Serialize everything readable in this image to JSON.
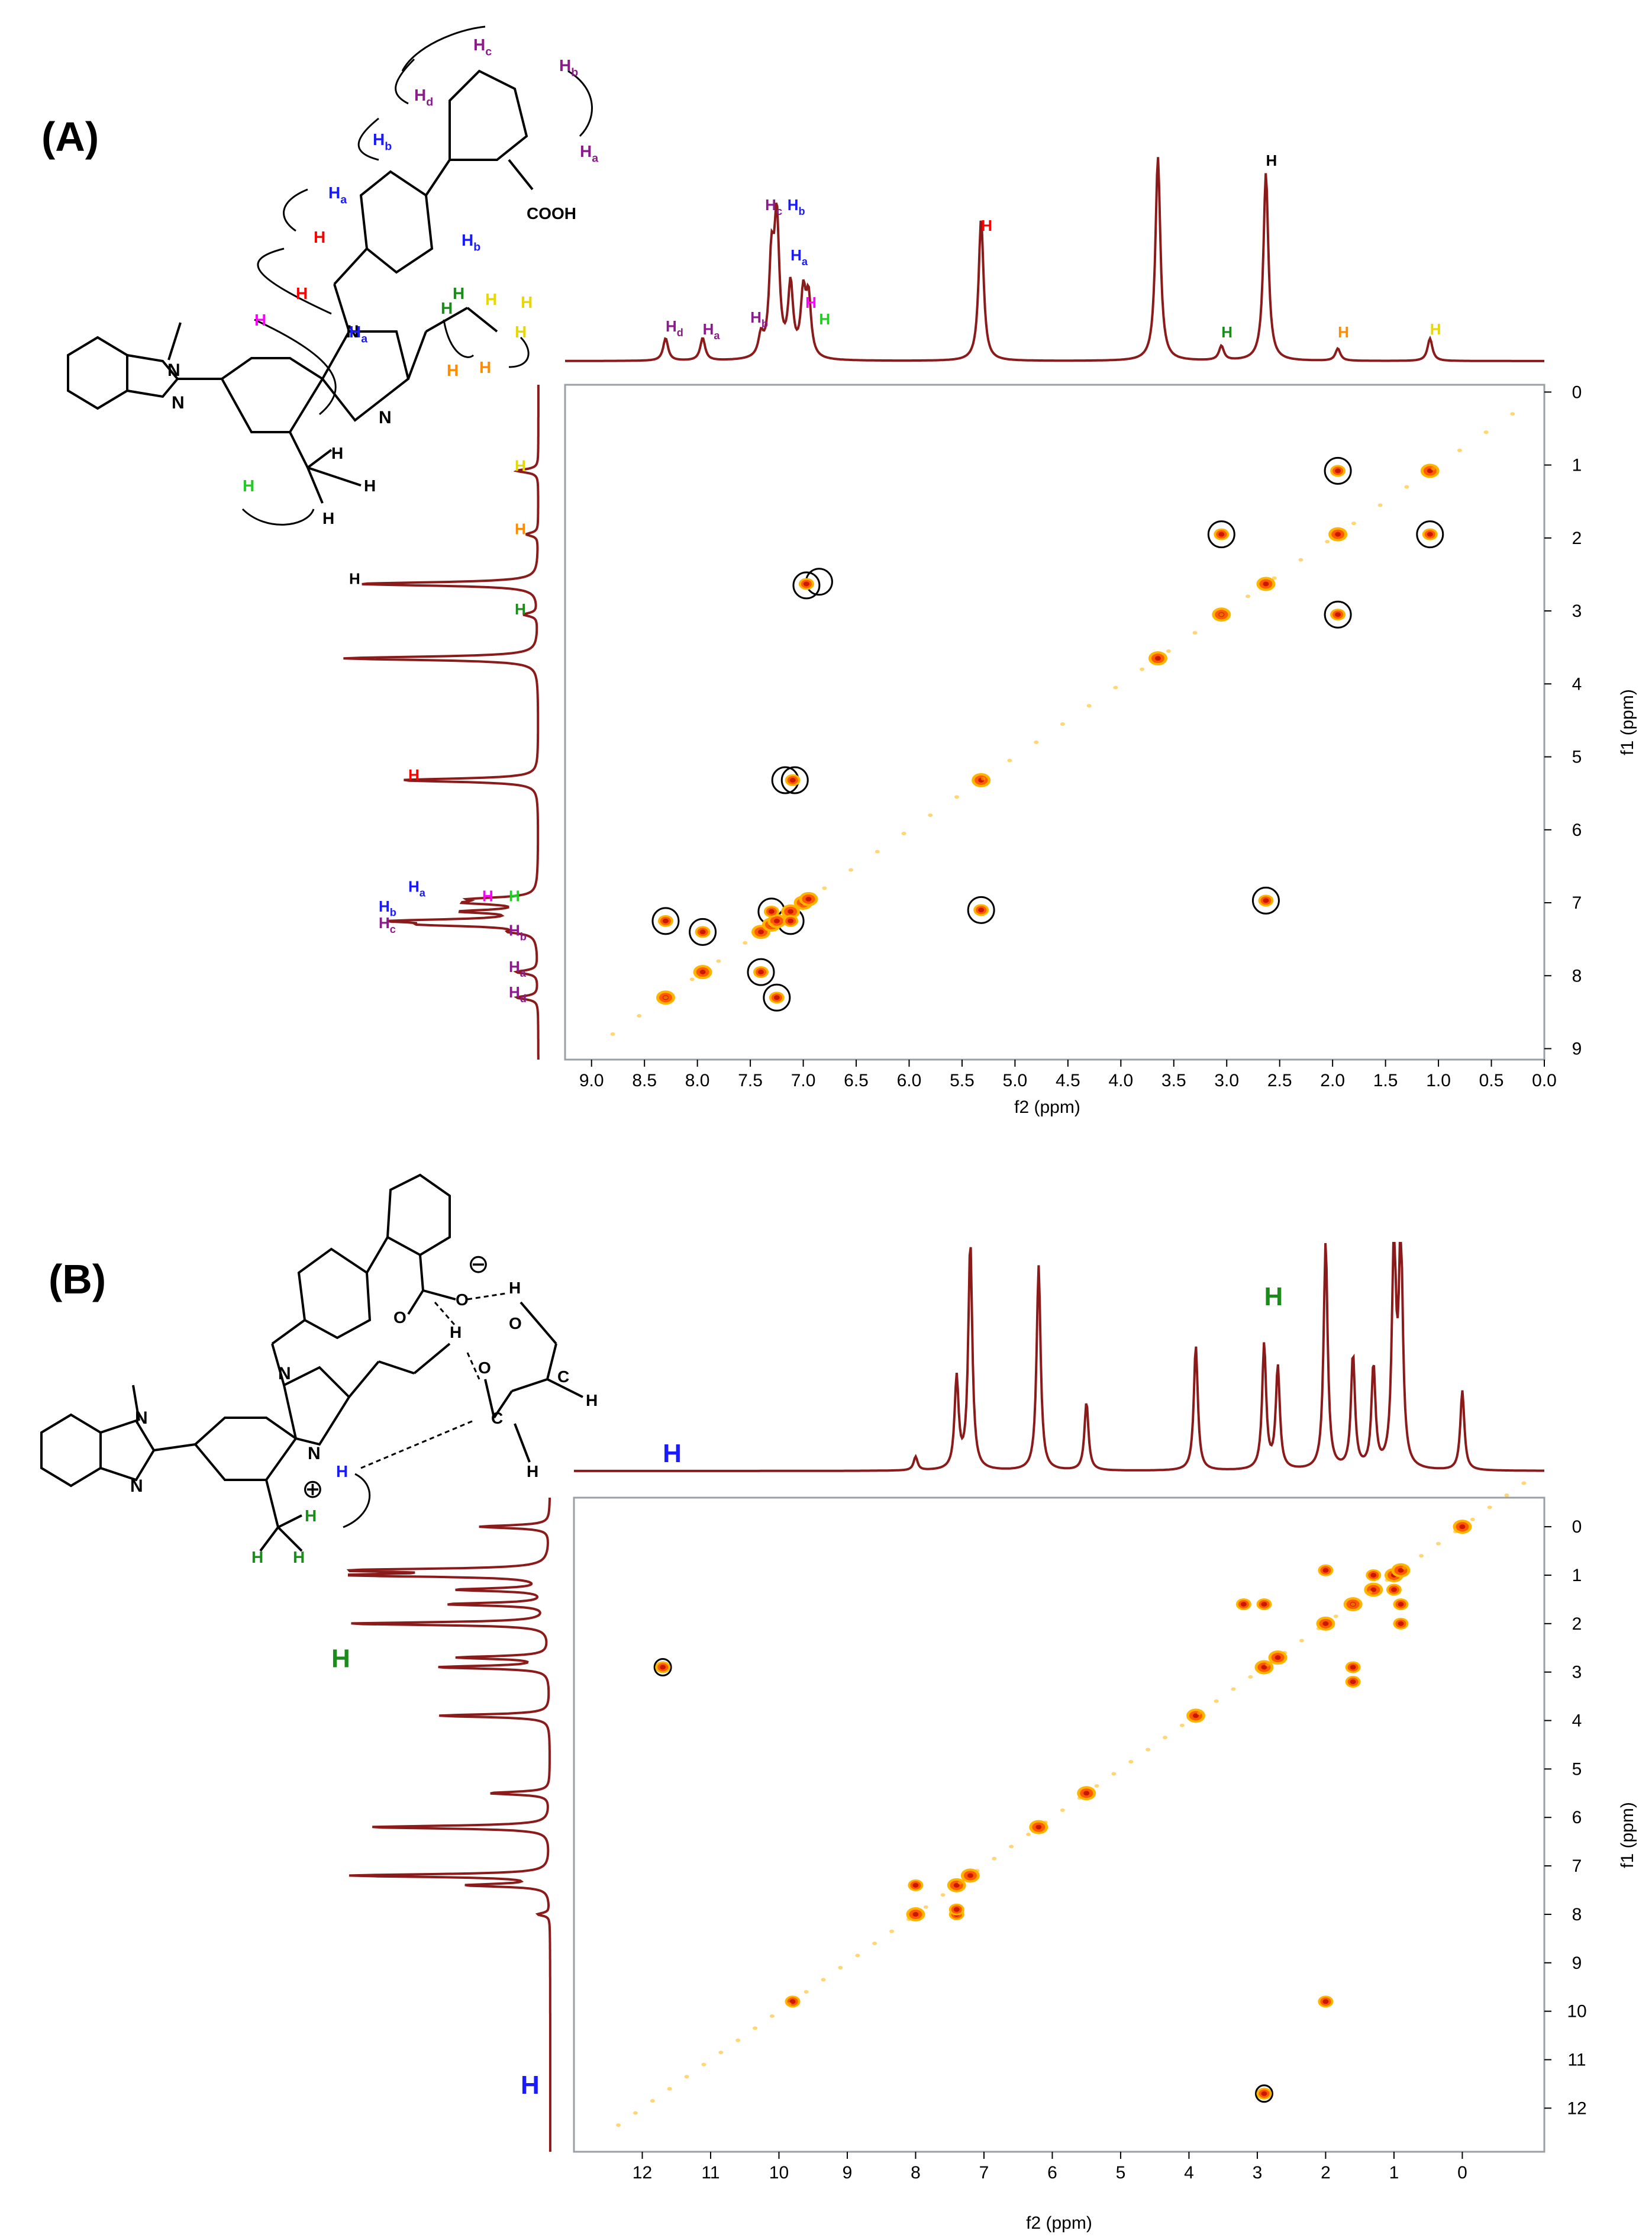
{
  "colors": {
    "spectrum": "#8b1a1a",
    "peak_strong": "#c81800",
    "peak_mid": "#ff5a00",
    "peak_weak": "#ffb400",
    "black": "#000000",
    "blue": "#1a1aff",
    "purple": "#8b1a8b",
    "red": "#ff0000",
    "magenta": "#ff00ff",
    "green": "#22cc22",
    "dark_green": "#1a8c1a",
    "orange": "#ff8c00",
    "yellow": "#e6d800"
  },
  "chart_data": [
    {
      "type": "heatmap",
      "panel_label": "(A)",
      "xlabel": "f2 (ppm)",
      "ylabel": "f1 (ppm)",
      "xlim": [
        9.25,
        0.0
      ],
      "ylim": [
        -0.1,
        9.15
      ],
      "x_ticks": [
        "9.0",
        "8.5",
        "8.0",
        "7.5",
        "7.0",
        "6.5",
        "6.0",
        "5.5",
        "5.0",
        "4.5",
        "4.0",
        "3.5",
        "3.0",
        "2.5",
        "2.0",
        "1.5",
        "1.0",
        "0.5",
        "0.0"
      ],
      "y_ticks": [
        "0",
        "1",
        "2",
        "3",
        "4",
        "5",
        "6",
        "7",
        "8",
        "9"
      ],
      "diagonal_peaks": [
        [
          8.3,
          8.3
        ],
        [
          7.95,
          7.95
        ],
        [
          7.4,
          7.4
        ],
        [
          7.3,
          7.3
        ],
        [
          7.25,
          7.25
        ],
        [
          7.12,
          7.12
        ],
        [
          7.0,
          7.0
        ],
        [
          6.95,
          6.95
        ],
        [
          5.32,
          5.32
        ],
        [
          3.65,
          3.65
        ],
        [
          3.05,
          3.05
        ],
        [
          2.63,
          2.63
        ],
        [
          1.95,
          1.95
        ],
        [
          1.08,
          1.08
        ]
      ],
      "cross_peaks": [
        [
          8.3,
          7.25
        ],
        [
          7.95,
          7.4
        ],
        [
          7.4,
          7.95
        ],
        [
          7.25,
          8.3
        ],
        [
          7.3,
          7.12
        ],
        [
          7.12,
          7.25
        ],
        [
          6.97,
          2.63
        ],
        [
          2.63,
          6.97
        ],
        [
          7.1,
          5.32
        ],
        [
          5.32,
          7.1
        ],
        [
          3.05,
          1.95
        ],
        [
          1.95,
          3.05
        ],
        [
          1.95,
          1.08
        ],
        [
          1.08,
          1.95
        ]
      ],
      "circled": [
        [
          8.3,
          7.25
        ],
        [
          7.95,
          7.4
        ],
        [
          7.4,
          7.95
        ],
        [
          7.25,
          8.3
        ],
        [
          7.3,
          7.12
        ],
        [
          7.12,
          7.25
        ],
        [
          6.97,
          2.65
        ],
        [
          6.85,
          2.6
        ],
        [
          7.17,
          5.32
        ],
        [
          7.08,
          5.32
        ],
        [
          5.32,
          7.1
        ],
        [
          2.63,
          6.97
        ],
        [
          3.05,
          1.95
        ],
        [
          1.95,
          1.08
        ],
        [
          1.08,
          1.95
        ],
        [
          1.95,
          3.05
        ]
      ],
      "f2_spectrum_labels": [
        {
          "text": "Hd",
          "color": "purple"
        },
        {
          "text": "Ha",
          "color": "purple"
        },
        {
          "text": "Hb",
          "color": "purple"
        },
        {
          "text": "Hc",
          "color": "purple"
        },
        {
          "text": "Hb",
          "color": "blue"
        },
        {
          "text": "Ha",
          "color": "blue"
        },
        {
          "text": "H",
          "color": "magenta"
        },
        {
          "text": "H",
          "color": "green"
        },
        {
          "text": "H",
          "color": "red"
        },
        {
          "text": "H",
          "color": "dark_green"
        },
        {
          "text": "H",
          "color": "black"
        },
        {
          "text": "H",
          "color": "orange"
        },
        {
          "text": "H",
          "color": "yellow"
        }
      ],
      "f1_spectrum_labels": [
        {
          "text": "H",
          "color": "yellow"
        },
        {
          "text": "H",
          "color": "orange"
        },
        {
          "text": "H",
          "color": "black"
        },
        {
          "text": "H",
          "color": "dark_green"
        },
        {
          "text": "H",
          "color": "red"
        },
        {
          "text": "Ha",
          "color": "blue"
        },
        {
          "text": "H",
          "color": "magenta"
        },
        {
          "text": "H",
          "color": "green"
        },
        {
          "text": "Hb",
          "color": "blue"
        },
        {
          "text": "Hc",
          "color": "purple"
        },
        {
          "text": "Hb",
          "color": "purple"
        },
        {
          "text": "Ha",
          "color": "purple"
        },
        {
          "text": "Hd",
          "color": "purple"
        }
      ]
    },
    {
      "type": "heatmap",
      "panel_label": "(B)",
      "xlabel": "f2 (ppm)",
      "ylabel": "f1 (ppm)",
      "xlim": [
        13.0,
        -1.2
      ],
      "ylim": [
        -0.6,
        12.9
      ],
      "x_ticks": [
        "12",
        "11",
        "10",
        "9",
        "8",
        "7",
        "6",
        "5",
        "4",
        "3",
        "2",
        "1",
        "0"
      ],
      "y_ticks": [
        "0",
        "1",
        "2",
        "3",
        "4",
        "5",
        "6",
        "7",
        "8",
        "9",
        "10",
        "11",
        "12"
      ],
      "diagonal_peaks": [
        [
          8.0,
          8.0
        ],
        [
          7.4,
          7.4
        ],
        [
          7.2,
          7.2
        ],
        [
          6.2,
          6.2
        ],
        [
          5.5,
          5.5
        ],
        [
          3.9,
          3.9
        ],
        [
          2.9,
          2.9
        ],
        [
          2.7,
          2.7
        ],
        [
          2.0,
          2.0
        ],
        [
          1.6,
          1.6
        ],
        [
          1.3,
          1.3
        ],
        [
          1.0,
          1.0
        ],
        [
          0.9,
          0.9
        ],
        [
          0.0,
          0.0
        ]
      ],
      "cross_peaks": [
        [
          8.0,
          7.4
        ],
        [
          7.4,
          8.0
        ],
        [
          7.4,
          7.9
        ],
        [
          3.2,
          1.6
        ],
        [
          1.6,
          2.9
        ],
        [
          1.6,
          3.2
        ],
        [
          1.0,
          1.3
        ],
        [
          1.3,
          1.0
        ],
        [
          0.9,
          1.6
        ],
        [
          0.9,
          2.0
        ],
        [
          2.9,
          1.6
        ],
        [
          2.0,
          0.9
        ],
        [
          2.9,
          11.7
        ],
        [
          11.7,
          2.9
        ],
        [
          9.8,
          9.8
        ],
        [
          2.0,
          9.8
        ]
      ],
      "circled": [
        [
          11.7,
          2.9
        ],
        [
          2.9,
          11.7
        ]
      ],
      "f2_spectrum_labels": [
        {
          "text": "H",
          "color": "blue"
        },
        {
          "text": "H",
          "color": "dark_green"
        }
      ],
      "f1_spectrum_labels": [
        {
          "text": "H",
          "color": "dark_green"
        },
        {
          "text": "H",
          "color": "blue"
        }
      ]
    }
  ],
  "structure_A": {
    "cooh_label": "COOH",
    "atoms": [
      "N",
      "N",
      "N",
      "N"
    ],
    "h_labels": [
      {
        "text": "Hc",
        "color": "purple"
      },
      {
        "text": "Hb",
        "color": "purple"
      },
      {
        "text": "Hd",
        "color": "purple"
      },
      {
        "text": "Ha",
        "color": "purple"
      },
      {
        "text": "Hb",
        "color": "blue"
      },
      {
        "text": "Ha",
        "color": "blue"
      },
      {
        "text": "Hb",
        "color": "blue"
      },
      {
        "text": "Ha",
        "color": "blue"
      },
      {
        "text": "H",
        "color": "red"
      },
      {
        "text": "H",
        "color": "red"
      },
      {
        "text": "H",
        "color": "magenta"
      },
      {
        "text": "H",
        "color": "green"
      },
      {
        "text": "H",
        "color": "dark_green"
      },
      {
        "text": "H",
        "color": "dark_green"
      },
      {
        "text": "H",
        "color": "orange"
      },
      {
        "text": "H",
        "color": "orange"
      },
      {
        "text": "H",
        "color": "yellow"
      },
      {
        "text": "H",
        "color": "yellow"
      },
      {
        "text": "H",
        "color": "yellow"
      },
      {
        "text": "H",
        "color": "black"
      },
      {
        "text": "H",
        "color": "black"
      },
      {
        "text": "H",
        "color": "black"
      }
    ]
  },
  "structure_B": {
    "atoms": [
      "N",
      "N",
      "N",
      "N",
      "O",
      "O",
      "O",
      "O",
      "C",
      "C",
      "H",
      "H",
      "H",
      "H"
    ],
    "charge_minus": "⊖",
    "charge_plus": "⊕",
    "h_labels": [
      {
        "text": "H",
        "color": "blue"
      },
      {
        "text": "H",
        "color": "dark_green"
      },
      {
        "text": "H",
        "color": "dark_green"
      },
      {
        "text": "H",
        "color": "dark_green"
      }
    ]
  }
}
